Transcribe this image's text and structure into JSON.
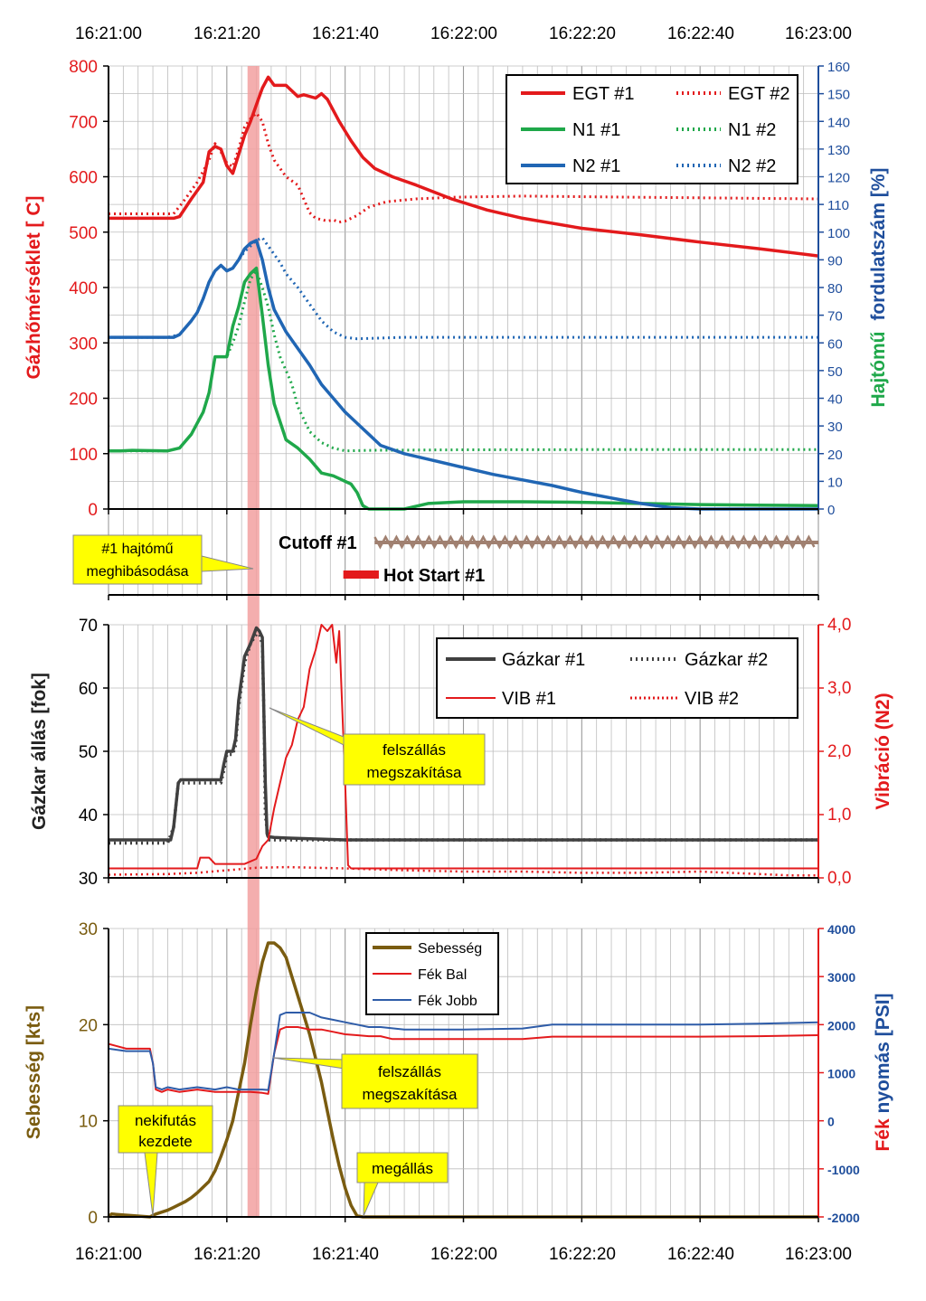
{
  "time_ticks": [
    "16:21:00",
    "16:21:20",
    "16:21:40",
    "16:22:00",
    "16:22:20",
    "16:22:40",
    "16:23:00"
  ],
  "highlight": {
    "start_s": 23.5,
    "end_s": 25.5,
    "color": "#f2a0a0"
  },
  "colors": {
    "red": "#e31a1c",
    "green": "#1fa84a",
    "blue": "#2066b4",
    "axis_blue": "#1f4e9c",
    "dark": "#404040",
    "olive": "#7a5c10",
    "yellow": "#ffff00",
    "brown": "#a08070",
    "grid": "#bdbdbd",
    "series_blue_thin": "#2e5ca8",
    "series_red_thin": "#e31a1c"
  },
  "events": {
    "failure_callout": "#1 hajtómű meghibásodása",
    "failure_line1": "#1 hajtómű",
    "failure_line2": "meghibásodása",
    "cutoff_label": "Cutoff #1",
    "cutoff_start_s": 45,
    "hotstart_label": "Hot Start #1",
    "hotstart_start_s": 40,
    "hotstart_end_s": 46
  },
  "chart_data": [
    {
      "id": "engine",
      "type": "line",
      "xlabel": "",
      "ylabel": "Gázhőmérséklet [ C]",
      "y2label_part1": "Hajtómű",
      "y2label_part2": "fordulatszám [%]",
      "x_range_s": [
        0,
        120
      ],
      "ylim": [
        0,
        800
      ],
      "y_ticks": [
        0,
        100,
        200,
        300,
        400,
        500,
        600,
        700,
        800
      ],
      "y2lim": [
        0,
        160
      ],
      "y2_ticks": [
        0,
        10,
        20,
        30,
        40,
        50,
        60,
        70,
        80,
        90,
        100,
        110,
        120,
        130,
        140,
        150,
        160
      ],
      "legend": [
        "EGT #1",
        "EGT #2",
        "N1 #1",
        "N1 #2",
        "N2 #1",
        "N2 #2"
      ],
      "series": [
        {
          "name": "EGT #1",
          "axis": "left",
          "style": "solid",
          "color": "red",
          "x": [
            0,
            11,
            12,
            14,
            16,
            17,
            18,
            19,
            20,
            21,
            22,
            23,
            24,
            25,
            26,
            27,
            28,
            30,
            32,
            33,
            35,
            36,
            37,
            39,
            41,
            43,
            45,
            48,
            52,
            58,
            64,
            70,
            80,
            90,
            100,
            110,
            120
          ],
          "y": [
            525,
            525,
            528,
            560,
            590,
            645,
            655,
            650,
            620,
            606,
            640,
            675,
            700,
            730,
            760,
            780,
            765,
            765,
            745,
            748,
            742,
            750,
            740,
            700,
            665,
            635,
            615,
            600,
            585,
            560,
            540,
            525,
            507,
            495,
            482,
            470,
            457
          ]
        },
        {
          "name": "EGT #2",
          "axis": "left",
          "style": "dotted",
          "color": "red",
          "x": [
            0,
            11,
            13,
            15,
            17,
            18,
            19,
            20,
            21,
            22,
            23,
            24,
            25,
            26,
            27,
            28,
            30,
            32,
            34,
            35,
            37,
            38,
            39,
            40,
            42,
            44,
            47,
            52,
            58,
            70,
            90,
            120
          ],
          "y": [
            533,
            533,
            560,
            590,
            630,
            660,
            645,
            625,
            618,
            650,
            690,
            705,
            715,
            700,
            660,
            630,
            600,
            585,
            535,
            525,
            520,
            522,
            518,
            520,
            530,
            545,
            555,
            560,
            563,
            565,
            563,
            560
          ]
        },
        {
          "name": "N1 #1",
          "axis": "right",
          "style": "solid",
          "color": "green",
          "x": [
            0,
            2,
            4,
            10,
            12,
            14,
            15,
            16,
            17,
            18,
            19,
            20,
            21,
            22,
            23,
            24,
            25,
            26,
            27,
            28,
            30,
            32,
            34,
            36,
            38,
            39,
            40,
            41,
            42,
            43,
            44,
            47,
            50,
            54,
            60,
            70,
            80,
            90,
            100,
            110,
            120
          ],
          "y": [
            21,
            21,
            21.2,
            21,
            22,
            27,
            31,
            35,
            42,
            55,
            55,
            55,
            66,
            73,
            82,
            85,
            87,
            70,
            52,
            38,
            25,
            22,
            18,
            13,
            12,
            11,
            10,
            9,
            6,
            1.2,
            0,
            0,
            0,
            2,
            2.6,
            2.6,
            2.4,
            2,
            1.6,
            1.4,
            1.2
          ]
        },
        {
          "name": "N1 #2",
          "axis": "right",
          "style": "dotted",
          "color": "green",
          "x": [
            0,
            10,
            12,
            14,
            15,
            16,
            17,
            18,
            19,
            20,
            21,
            22,
            23,
            24,
            25,
            26,
            27,
            28,
            29,
            30,
            31,
            32,
            34,
            36,
            38,
            40,
            44,
            60,
            90,
            120
          ],
          "y": [
            21,
            21,
            22,
            27,
            31,
            35,
            42,
            55,
            55,
            55,
            60,
            66,
            75,
            83,
            86,
            80,
            73,
            63,
            55,
            50,
            45,
            37,
            28,
            24,
            22,
            21,
            21.2,
            21.4,
            21.5,
            21.5
          ]
        },
        {
          "name": "N2 #1",
          "axis": "right",
          "style": "solid",
          "color": "blue",
          "x": [
            0,
            2,
            10,
            11,
            12,
            14,
            15,
            16,
            17,
            18,
            19,
            20,
            21,
            22,
            23,
            24,
            25,
            26,
            27,
            28,
            30,
            32,
            34,
            36,
            38,
            40,
            42,
            44,
            46,
            50,
            55,
            60,
            65,
            70,
            75,
            80,
            85,
            90,
            95,
            100,
            105,
            110,
            115,
            120
          ],
          "y": [
            62,
            62,
            62,
            62,
            63,
            68,
            71,
            76,
            82,
            86,
            88,
            86,
            87,
            90,
            94,
            96,
            97,
            90,
            80,
            72,
            64,
            58,
            52,
            45,
            40,
            35,
            31,
            27,
            23,
            20,
            17.5,
            15,
            12.5,
            10.5,
            8.5,
            6,
            4,
            2,
            0.5,
            0,
            0,
            0,
            0,
            0
          ]
        },
        {
          "name": "N2 #2",
          "axis": "right",
          "style": "dotted",
          "color": "blue",
          "x": [
            0,
            10,
            12,
            14,
            15,
            16,
            17,
            18,
            19,
            20,
            21,
            22,
            23,
            24,
            25,
            26,
            27,
            28,
            29,
            30,
            32,
            34,
            36,
            38,
            40,
            42,
            50,
            70,
            90,
            120
          ],
          "y": [
            62,
            62,
            63,
            68,
            71,
            76,
            82,
            86,
            88,
            86,
            87,
            90,
            93,
            95,
            97,
            98,
            95,
            92,
            89,
            85,
            80,
            74,
            68,
            64,
            62,
            61.5,
            62,
            62,
            62,
            62
          ]
        }
      ]
    },
    {
      "id": "throttle",
      "type": "line",
      "ylabel": "Gázkar állás [fok]",
      "y2label": "Vibráció (N2)",
      "x_range_s": [
        0,
        120
      ],
      "ylim": [
        30,
        70
      ],
      "y_ticks": [
        30,
        40,
        50,
        60,
        70
      ],
      "y2lim": [
        0,
        4
      ],
      "y2_ticks": [
        "0,0",
        "1,0",
        "2,0",
        "3,0",
        "4,0"
      ],
      "legend": [
        "Gázkar #1",
        "Gázkar #2",
        "VIB #1",
        "VIB #2"
      ],
      "series": [
        {
          "name": "Gázkar #1",
          "axis": "left",
          "style": "solid",
          "color": "dark",
          "x": [
            0,
            10,
            10.5,
            11,
            11.8,
            12.2,
            15,
            18,
            19,
            19.5,
            20,
            20.5,
            21,
            21.5,
            22,
            23,
            24,
            25,
            25.5,
            26,
            26.5,
            26.8,
            27,
            28,
            30,
            40,
            80,
            120
          ],
          "y": [
            36,
            36,
            36,
            38,
            45,
            45.5,
            45.5,
            45.5,
            45.5,
            48,
            50,
            50,
            50,
            52,
            58,
            65,
            67,
            69.5,
            69,
            68,
            45,
            37,
            36.5,
            36.4,
            36.3,
            36,
            36,
            36
          ]
        },
        {
          "name": "Gázkar #2",
          "axis": "left",
          "style": "dotted",
          "color": "dark",
          "x": [
            0,
            10,
            11,
            11.8,
            12.2,
            15,
            18,
            19,
            19.5,
            20,
            20.5,
            21,
            21.5,
            22,
            23,
            24,
            25,
            25.5,
            26,
            26.3,
            26.5,
            27,
            30,
            40,
            80,
            120
          ],
          "y": [
            35.5,
            35.5,
            38,
            45,
            45,
            45,
            45,
            45,
            47,
            49.5,
            49.5,
            49.5,
            51,
            57,
            64,
            67,
            68.5,
            68.5,
            67,
            55,
            40,
            36,
            36,
            36,
            36,
            36
          ]
        },
        {
          "name": "VIB #1",
          "axis": "right",
          "style": "solid",
          "color": "red",
          "x": [
            0,
            15,
            15.5,
            17,
            18,
            20,
            23,
            25,
            26,
            27,
            28,
            29,
            30,
            31,
            32,
            33,
            34,
            35,
            36,
            37,
            37.8,
            38.5,
            39,
            40,
            40.5,
            41,
            60,
            120
          ],
          "y": [
            0.15,
            0.15,
            0.32,
            0.32,
            0.22,
            0.22,
            0.22,
            0.3,
            0.5,
            0.6,
            1.1,
            1.5,
            1.9,
            2.1,
            2.5,
            2.7,
            3.3,
            3.6,
            4.0,
            3.9,
            4.0,
            3.4,
            3.9,
            1.5,
            0.2,
            0.15,
            0.15,
            0.15
          ]
        },
        {
          "name": "VIB #2",
          "axis": "right",
          "style": "dotted",
          "color": "red",
          "x": [
            0,
            10,
            15,
            20,
            25,
            30,
            35,
            40,
            50,
            60,
            70,
            80,
            90,
            100,
            110,
            115,
            120
          ],
          "y": [
            0.05,
            0.06,
            0.08,
            0.12,
            0.16,
            0.17,
            0.16,
            0.15,
            0.12,
            0.1,
            0.1,
            0.08,
            0.08,
            0.1,
            0.06,
            0.04,
            0.04
          ]
        }
      ]
    },
    {
      "id": "speed",
      "type": "line",
      "ylabel": "Sebesség [kts]",
      "y2label_part1": "Fék",
      "y2label_part2": "nyomás [PSI]",
      "x_range_s": [
        0,
        120
      ],
      "ylim": [
        0,
        30
      ],
      "y_ticks": [
        0,
        10,
        20,
        30
      ],
      "y2lim": [
        -2000,
        4000
      ],
      "y2_ticks": [
        -2000,
        -1000,
        0,
        1000,
        2000,
        3000,
        4000
      ],
      "legend": [
        "Sebesség",
        "Fék Bal",
        "Fék Jobb"
      ],
      "series": [
        {
          "name": "Sebesség",
          "axis": "left",
          "style": "solid",
          "color": "olive",
          "x": [
            0,
            0.5,
            7,
            8,
            10,
            11,
            12,
            13,
            14,
            15,
            17,
            18,
            19,
            20,
            21,
            22,
            23,
            24,
            25,
            26,
            27,
            28,
            29,
            30,
            31,
            32,
            33,
            34,
            35,
            36,
            37,
            38,
            39,
            40,
            41,
            42,
            43,
            44,
            60,
            90,
            120
          ],
          "y": [
            0,
            0.3,
            0,
            0.3,
            0.7,
            1,
            1.3,
            1.6,
            2,
            2.5,
            3.7,
            4.8,
            6.3,
            8,
            10,
            13,
            16,
            20,
            23.5,
            26.5,
            28.5,
            28.5,
            28,
            27,
            25,
            23,
            21,
            19,
            16.5,
            14,
            11,
            8,
            5.3,
            3,
            1.2,
            0.1,
            0,
            0,
            0,
            0,
            0
          ]
        },
        {
          "name": "Fék Bal",
          "axis": "right",
          "style": "solid",
          "color": "red",
          "x": [
            0,
            3,
            5,
            7,
            7.5,
            8,
            9,
            10,
            12,
            15,
            18,
            20,
            22,
            24,
            26,
            27,
            28,
            29,
            30,
            32,
            34,
            36,
            38,
            40,
            42,
            44,
            46,
            48,
            52,
            55,
            60,
            70,
            75,
            80,
            90,
            100,
            110,
            120
          ],
          "y": [
            1600,
            1500,
            1500,
            1500,
            1200,
            650,
            600,
            650,
            600,
            650,
            600,
            600,
            600,
            600,
            580,
            560,
            1400,
            1900,
            1950,
            1950,
            1900,
            1900,
            1850,
            1800,
            1780,
            1760,
            1760,
            1700,
            1700,
            1700,
            1700,
            1700,
            1750,
            1750,
            1750,
            1750,
            1760,
            1780
          ]
        },
        {
          "name": "Fék Jobb",
          "axis": "right",
          "style": "solid",
          "color": "series_blue_thin",
          "x": [
            0,
            3,
            5,
            7,
            7.5,
            8,
            9,
            10,
            12,
            15,
            18,
            20,
            22,
            24,
            26,
            27,
            28,
            29,
            30,
            32,
            34,
            36,
            38,
            40,
            42,
            44,
            46,
            50,
            55,
            60,
            70,
            75,
            80,
            90,
            100,
            110,
            120
          ],
          "y": [
            1500,
            1450,
            1450,
            1450,
            1200,
            700,
            650,
            700,
            650,
            700,
            650,
            700,
            650,
            650,
            650,
            640,
            1400,
            2200,
            2250,
            2250,
            2250,
            2150,
            2100,
            2050,
            2000,
            1950,
            1950,
            1900,
            1900,
            1900,
            1920,
            2000,
            2000,
            2000,
            2000,
            2020,
            2050
          ]
        }
      ]
    }
  ],
  "annotations": {
    "abort1": "felszállás megszakítása",
    "abort1_line1": "felszállás",
    "abort1_line2": "megszakítása",
    "abort2_line1": "felszállás",
    "abort2_line2": "megszakítása",
    "takeoff_line1": "nekifutás",
    "takeoff_line2": "kezdete",
    "stop": "megállás"
  }
}
